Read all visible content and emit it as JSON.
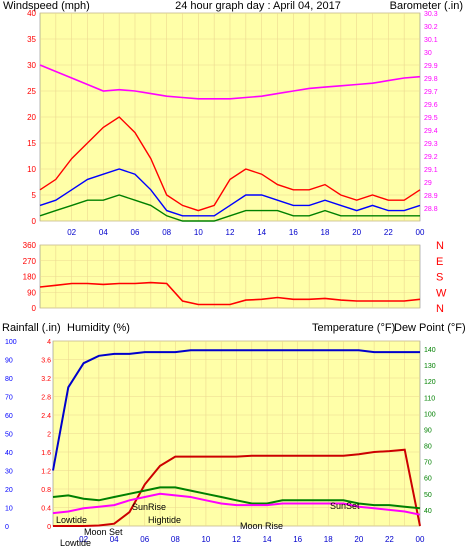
{
  "header": {
    "left_label": "Windspeed (mph)",
    "title": "24 hour graph day : April 04, 2017",
    "right_label": "Barometer (.in)"
  },
  "colors": {
    "bg": "#ffffa8",
    "grid": "#ecd890",
    "wind_gust": "#ff0000",
    "wind_avg": "#0000ff",
    "wind_low": "#008000",
    "barometer": "#ff00ff",
    "direction": "#ff0000",
    "rain": "#cc0000",
    "humidity": "#0000cc",
    "temperature": "#008000",
    "dewpoint": "#ff00ff",
    "axis_left": "#ff0000",
    "axis_blue": "#0000ff",
    "axis_green": "#008000",
    "axis_magenta": "#ff00ff"
  },
  "x_ticks": [
    "02",
    "04",
    "06",
    "08",
    "10",
    "12",
    "14",
    "16",
    "18",
    "20",
    "22",
    "00"
  ],
  "chart_data": [
    {
      "type": "line",
      "title": "24 hour graph day : April 04, 2017",
      "ylabel": "Windspeed (mph)",
      "y2label": "Barometer (.in)",
      "ylim": [
        0,
        40
      ],
      "y_ticks": [
        0,
        5,
        10,
        15,
        20,
        25,
        30,
        35,
        40
      ],
      "y2lim": [
        28.7,
        30.3
      ],
      "y2_ticks": [
        "28.8",
        "28.9",
        "29",
        "29.1",
        "29.2",
        "29.3",
        "29.4",
        "29.5",
        "29.6",
        "29.7",
        "29.8",
        "29.9",
        "30",
        "30.1",
        "30.2",
        "30.3"
      ],
      "x": [
        0,
        1,
        2,
        3,
        4,
        5,
        6,
        7,
        8,
        9,
        10,
        11,
        12,
        13,
        14,
        15,
        16,
        17,
        18,
        19,
        20,
        21,
        22,
        23,
        24
      ],
      "series": [
        {
          "values": [
            6,
            8,
            12,
            15,
            18,
            20,
            17,
            12,
            5,
            3,
            2,
            3,
            8,
            10,
            9,
            7,
            6,
            6,
            7,
            5,
            4,
            5,
            4,
            4,
            6
          ]
        },
        {
          "values": [
            3,
            4,
            6,
            8,
            9,
            10,
            9,
            6,
            2,
            1,
            1,
            1,
            3,
            5,
            5,
            4,
            3,
            3,
            4,
            3,
            2,
            3,
            2,
            2,
            3
          ]
        },
        {
          "values": [
            1,
            2,
            3,
            4,
            4,
            5,
            4,
            3,
            1,
            0,
            0,
            0,
            1,
            2,
            2,
            2,
            1,
            1,
            2,
            1,
            1,
            1,
            1,
            1,
            1
          ]
        },
        {
          "axis": "right",
          "values": [
            29.9,
            29.85,
            29.8,
            29.75,
            29.7,
            29.71,
            29.7,
            29.68,
            29.66,
            29.65,
            29.64,
            29.64,
            29.64,
            29.65,
            29.66,
            29.68,
            29.7,
            29.72,
            29.73,
            29.74,
            29.75,
            29.76,
            29.78,
            29.8,
            29.81
          ]
        }
      ]
    },
    {
      "type": "line",
      "ylim": [
        0,
        360
      ],
      "y_ticks": [
        0,
        90,
        180,
        270,
        360
      ],
      "right_ticks": [
        "N",
        "W",
        "S",
        "E",
        "N"
      ],
      "x": [
        0,
        1,
        2,
        3,
        4,
        5,
        6,
        7,
        8,
        9,
        10,
        11,
        12,
        13,
        14,
        15,
        16,
        17,
        18,
        19,
        20,
        21,
        22,
        23,
        24
      ],
      "series": [
        {
          "values": [
            120,
            130,
            140,
            140,
            135,
            140,
            140,
            145,
            140,
            40,
            20,
            20,
            20,
            45,
            50,
            60,
            50,
            50,
            55,
            45,
            40,
            40,
            40,
            40,
            50
          ]
        }
      ]
    },
    {
      "type": "line",
      "y_left_label_1": "Rainfall (.in)",
      "y_left_label_2": "Humidity (%)",
      "y_right_label_1": "Temperature (°F)",
      "y_right_label_2": "Dew Point (°F)",
      "ylim": [
        0,
        4
      ],
      "y_ticks": [
        "0",
        "0.4",
        "0.8",
        "1.2",
        "1.6",
        "2",
        "2.4",
        "2.8",
        "3.2",
        "3.6",
        "4"
      ],
      "y_humidity_ticks": [
        0,
        10,
        20,
        30,
        40,
        50,
        60,
        70,
        80,
        90,
        100
      ],
      "y2lim": [
        30,
        145
      ],
      "y2_ticks": [
        40,
        50,
        60,
        70,
        80,
        90,
        100,
        110,
        120,
        130,
        140
      ],
      "x": [
        0,
        1,
        2,
        3,
        4,
        5,
        6,
        7,
        8,
        9,
        10,
        11,
        12,
        13,
        14,
        15,
        16,
        17,
        18,
        19,
        20,
        21,
        22,
        23,
        24
      ],
      "series": [
        {
          "axis": "rain",
          "values": [
            0,
            0,
            0,
            0.01,
            0.05,
            0.3,
            0.9,
            1.3,
            1.5,
            1.5,
            1.5,
            1.5,
            1.5,
            1.52,
            1.52,
            1.52,
            1.52,
            1.52,
            1.52,
            1.52,
            1.55,
            1.6,
            1.62,
            1.65,
            0
          ]
        },
        {
          "axis": "humidity",
          "values": [
            30,
            75,
            88,
            92,
            93,
            93,
            94,
            94,
            94,
            95,
            95,
            95,
            95,
            95,
            95,
            95,
            95,
            95,
            95,
            95,
            95,
            94,
            94,
            94,
            94
          ]
        },
        {
          "axis": "right",
          "values": [
            48,
            49,
            47,
            46,
            48,
            50,
            52,
            54,
            54,
            52,
            50,
            48,
            46,
            44,
            44,
            46,
            46,
            46,
            46,
            46,
            44,
            43,
            43,
            42,
            41
          ]
        },
        {
          "axis": "right",
          "values": [
            38,
            39,
            41,
            42,
            43,
            46,
            48,
            50,
            49,
            48,
            46,
            44,
            43,
            43,
            43,
            44,
            44,
            44,
            44,
            44,
            42,
            41,
            40,
            39,
            37
          ]
        }
      ],
      "annotations": [
        "Lowtide",
        "Moon Set",
        "SunRise",
        "Hightide",
        "Moon Rise",
        "SunSet",
        "Lowtide"
      ]
    }
  ]
}
